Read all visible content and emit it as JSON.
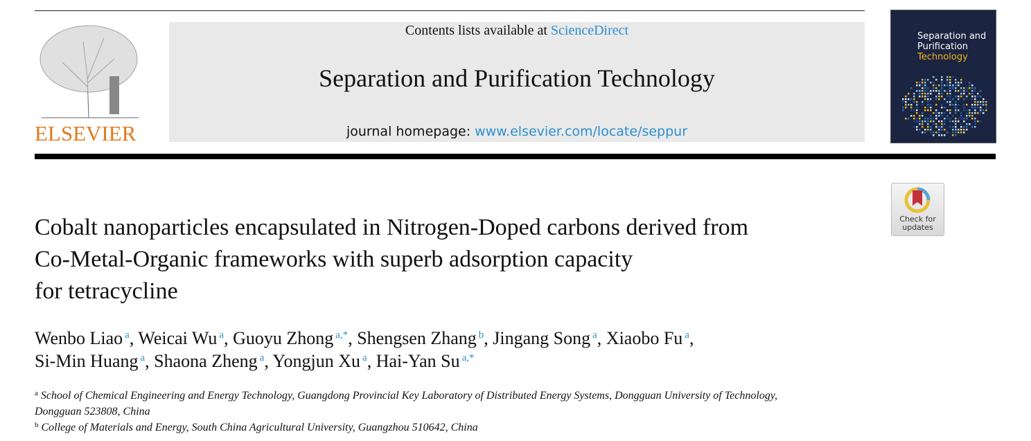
{
  "header": {
    "publisher": "ELSEVIER",
    "contents_prefix": "Contents lists available at ",
    "contents_link": "ScienceDirect",
    "journal_title": "Separation and Purification Technology",
    "homepage_prefix": "journal homepage: ",
    "homepage_link": "www.elsevier.com/locate/seppur",
    "cover_title_1": "Separation and",
    "cover_title_2": "Purification",
    "cover_title_3": "Technology",
    "check_updates_1": "Check for",
    "check_updates_2": "updates"
  },
  "article": {
    "title_lines": [
      "Cobalt nanoparticles encapsulated in Nitrogen-Doped carbons derived from",
      "Co-Metal-Organic frameworks with superb adsorption capacity",
      "for tetracycline"
    ],
    "authors": [
      {
        "name": "Wenbo Liao",
        "aff": "a"
      },
      {
        "name": "Weicai Wu",
        "aff": "a"
      },
      {
        "name": "Guoyu Zhong",
        "aff": "a,*"
      },
      {
        "name": "Shengsen Zhang",
        "aff": "b"
      },
      {
        "name": "Jingang Song",
        "aff": "a"
      },
      {
        "name": "Xiaobo Fu",
        "aff": "a"
      },
      {
        "name": "Si-Min Huang",
        "aff": "a"
      },
      {
        "name": "Shaona Zheng",
        "aff": "a"
      },
      {
        "name": "Yongjun Xu",
        "aff": "a"
      },
      {
        "name": "Hai-Yan Su",
        "aff": "a,*"
      }
    ],
    "affiliations": [
      {
        "mark": "a",
        "line1": "School of Chemical Engineering and Energy Technology, Guangdong Provincial Key Laboratory of Distributed Energy Systems, Dongguan University of Technology,",
        "line2": "Dongguan 523808, China"
      },
      {
        "mark": "b",
        "line1": "College of Materials and Energy, South China Agricultural University, Guangzhou 510642, China"
      }
    ]
  },
  "colors": {
    "link": "#2a8fd0",
    "elsevier_orange": "#e07a1f",
    "cover_bg": "#1b2440",
    "cover_accent": "#f2b51c"
  }
}
